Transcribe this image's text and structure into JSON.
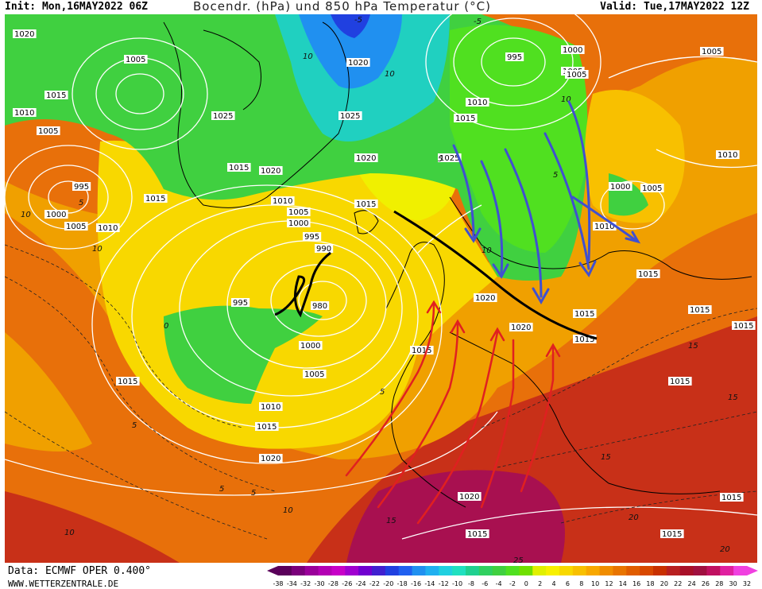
{
  "header": {
    "init": "Init: Mon,16MAY2022 06Z",
    "title": "Bocendr. (hPa) und 850 hPa Temperatur (°C)",
    "valid": "Valid: Tue,17MAY2022 12Z"
  },
  "footer": {
    "source": "Data: ECMWF OPER 0.400°",
    "site": "WWW.WETTERZENTRALE.DE"
  },
  "colorbar": {
    "ticks": [
      "-38",
      "-34",
      "-32",
      "-30",
      "-28",
      "-26",
      "-24",
      "-22",
      "-20",
      "-18",
      "-16",
      "-14",
      "-12",
      "-10",
      "-8",
      "-6",
      "-4",
      "-2",
      "0",
      "2",
      "4",
      "6",
      "8",
      "10",
      "12",
      "14",
      "16",
      "18",
      "20",
      "22",
      "24",
      "26",
      "28",
      "30",
      "32"
    ],
    "colors": [
      "#5a005a",
      "#7a007a",
      "#9a009a",
      "#b400b4",
      "#c800c8",
      "#a000d0",
      "#7000d0",
      "#4020d0",
      "#2040e0",
      "#2060f0",
      "#2090f0",
      "#20b0f0",
      "#20d0e0",
      "#20e0c0",
      "#20d090",
      "#30d060",
      "#40d040",
      "#50e020",
      "#70e000",
      "#e0f000",
      "#f8f000",
      "#f8d800",
      "#f8c000",
      "#f8a800",
      "#f08c00",
      "#e87400",
      "#e05c00",
      "#d84800",
      "#c83000",
      "#b82020",
      "#a81028",
      "#a01040",
      "#c01060",
      "#e020a0",
      "#f040e0"
    ]
  },
  "isobar_labels": [
    "1020",
    "1005",
    "1015",
    "1010",
    "1005",
    "995",
    "1000",
    "1005",
    "1010",
    "1015",
    "1025",
    "1015",
    "1020",
    "1010",
    "1005",
    "1000",
    "995",
    "990",
    "995",
    "980",
    "1000",
    "1005",
    "1010",
    "1015",
    "1020",
    "1015",
    "1020",
    "1025",
    "1020",
    "1025",
    "1010",
    "1015",
    "1005",
    "995",
    "1000",
    "1005",
    "1010",
    "1000",
    "1005",
    "1015",
    "1005",
    "1010",
    "1015",
    "1020",
    "1015",
    "1020",
    "1015",
    "1015",
    "1015",
    "1015",
    "1020",
    "1015",
    "1015",
    "1015",
    "1015"
  ],
  "temp_labels": [
    "10",
    "10",
    "5",
    "10",
    "10",
    "5",
    "0",
    "5",
    "5",
    "10",
    "-5",
    "-5",
    "5",
    "10",
    "15",
    "15",
    "20",
    "25",
    "15",
    "20",
    "10",
    "5",
    "15",
    "10",
    "5"
  ]
}
